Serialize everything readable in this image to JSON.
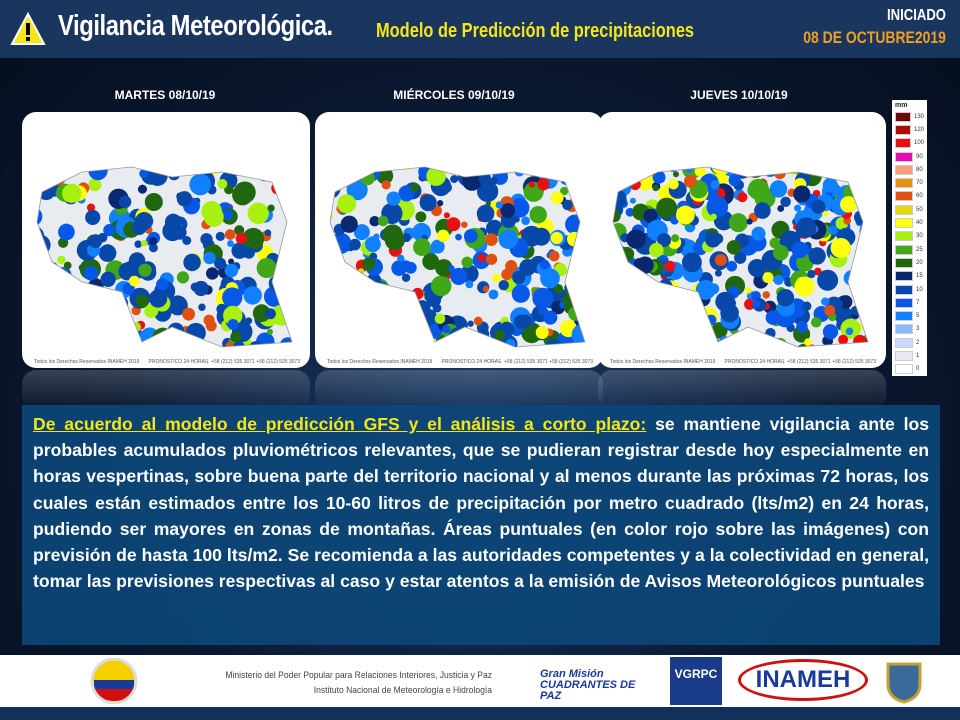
{
  "header": {
    "title": "Vigilancia Meteorológica.",
    "subtitle": "Modelo de Predicción de precipitaciones",
    "status": "INICIADO",
    "date": "08 DE OCTUBRE2019",
    "icon": "warning-triangle-icon"
  },
  "days": [
    {
      "label": "MARTES 08/10/19",
      "copyright": "Todos los Derechos Reservados INAMEH 2019",
      "forecast": "PRONOSTICO 24 HORAS. +58 (212) 535 3071 +58 (212) 535 3073"
    },
    {
      "label": "MIÉRCOLES 09/10/19",
      "copyright": "Todos los Derechos Reservados INAMEH 2019",
      "forecast": "PRONOSTICO 24 HORAS. +58 (212) 535 3071 +58 (212) 535 3073"
    },
    {
      "label": "JUEVES 10/10/19",
      "copyright": "Todos los Derechos Reservados INAMEH 2019",
      "forecast": "PRONOSTICO 24 HORAS. +58 (212) 535 3071 +58 (212) 535 3073"
    }
  ],
  "legend": {
    "unit": "mm",
    "items": [
      {
        "value": "130",
        "color": "#6b0a0a"
      },
      {
        "value": "120",
        "color": "#a80e0e"
      },
      {
        "value": "100",
        "color": "#e81010"
      },
      {
        "value": "90",
        "color": "#e010b0"
      },
      {
        "value": "80",
        "color": "#f8a080"
      },
      {
        "value": "70",
        "color": "#e89010"
      },
      {
        "value": "60",
        "color": "#e05010"
      },
      {
        "value": "50",
        "color": "#e0d810"
      },
      {
        "value": "40",
        "color": "#ffff10"
      },
      {
        "value": "30",
        "color": "#a8f010"
      },
      {
        "value": "25",
        "color": "#40a818"
      },
      {
        "value": "20",
        "color": "#206810"
      },
      {
        "value": "15",
        "color": "#0a2870"
      },
      {
        "value": "10",
        "color": "#0848a8"
      },
      {
        "value": "7",
        "color": "#0858e8"
      },
      {
        "value": "5",
        "color": "#1080ff"
      },
      {
        "value": "3",
        "color": "#88b8ff"
      },
      {
        "value": "2",
        "color": "#c8d8ff"
      },
      {
        "value": "1",
        "color": "#e8e8f0"
      },
      {
        "value": "0",
        "color": "#ffffff"
      }
    ]
  },
  "bulletin": {
    "highlight": "De acuerdo al modelo de predicción GFS y el análisis a corto plazo:",
    "body": " se mantiene vigilancia ante los probables acumulados pluviométricos relevantes, que se pudieran registrar desde hoy especialmente en horas vespertinas, sobre buena parte del territorio nacional y al menos durante las próximas 72 horas, los cuales están estimados entre los 10-60 litros de precipitación por metro cuadrado (lts/m2) en 24 horas, pudiendo ser mayores en zonas de montañas. Áreas puntuales (en color rojo sobre las imágenes) con previsión de hasta 100 lts/m2. Se recomienda a las autoridades competentes y a la colectividad en general, tomar las previsiones respectivas al caso y estar atentos a la emisión de Avisos Meteorológicos  puntuales"
  },
  "footer": {
    "ministry": "Ministerio del Poder Popular para Relaciones Interiores, Justicia y Paz",
    "institute": "Instituto  Nacional de Meteorología e Hidrología",
    "logos": [
      "Gran Misión CUADRANTES DE PAZ",
      "VGRPC",
      "INAMEH"
    ]
  }
}
